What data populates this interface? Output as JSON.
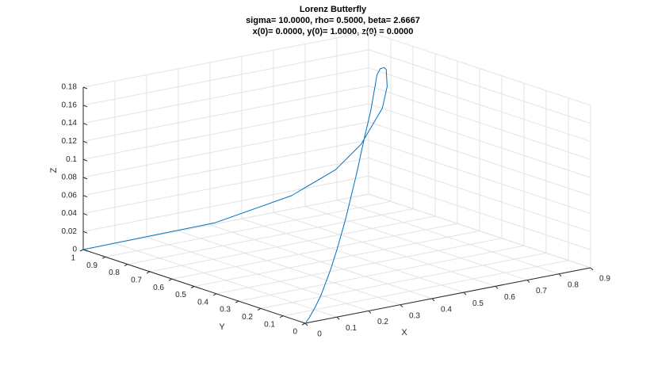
{
  "chart_data": {
    "type": "line3d",
    "title": "Lorenz Butterfly",
    "subtitle": [
      "sigma= 10.0000, rho= 0.5000, beta= 2.6667",
      "x(0)= 0.0000, y(0)= 1.0000, z(0) = 0.0000"
    ],
    "xlabel": "X",
    "ylabel": "Y",
    "zlabel": "Z",
    "color": "#0072bd",
    "grid": true,
    "x": [
      0,
      0.384,
      0.602,
      0.721,
      0.784,
      0.82,
      0.808,
      0.779,
      0.748,
      0.713,
      0.68,
      0.619,
      0.563,
      0.488,
      0.385,
      0.303,
      0.239,
      0.149,
      0.0925,
      0.0358,
      0.0086
    ],
    "y": [
      1,
      0.956,
      0.922,
      0.893,
      0.868,
      0.824,
      0.785,
      0.748,
      0.713,
      0.68,
      0.648,
      0.589,
      0.536,
      0.465,
      0.367,
      0.289,
      0.228,
      0.142,
      0.088,
      0.0341,
      0.0082
    ],
    "z": [
      0,
      0.007,
      0.025,
      0.048,
      0.074,
      0.115,
      0.143,
      0.167,
      0.174,
      0.178,
      0.176,
      0.145,
      0.125,
      0.095,
      0.06,
      0.038,
      0.024,
      0.009,
      0.004,
      0.0005,
      0
    ],
    "xlim": [
      0,
      0.9
    ],
    "ylim": [
      0,
      1
    ],
    "zlim": [
      0,
      0.18
    ],
    "xticks": [
      0,
      0.1,
      0.2,
      0.3,
      0.4,
      0.5,
      0.6,
      0.7,
      0.8,
      0.9
    ],
    "yticks": [
      0,
      0.1,
      0.2,
      0.3,
      0.4,
      0.5,
      0.6,
      0.7,
      0.8,
      0.9,
      1
    ],
    "zticks": [
      0,
      0.02,
      0.04,
      0.06,
      0.08,
      0.1,
      0.12,
      0.14,
      0.16,
      0.18
    ]
  }
}
